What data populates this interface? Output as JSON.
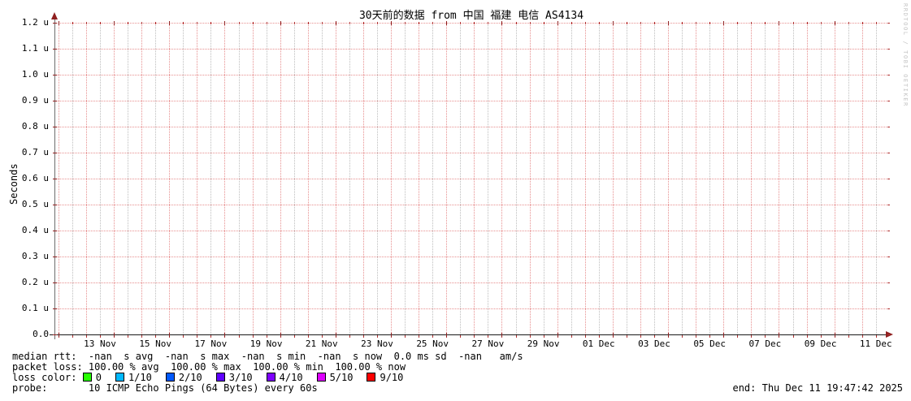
{
  "watermark": "RRDTOOL / TOBI OETIKER",
  "chart_data": {
    "type": "line",
    "title": "30天前的数据 from 中国 福建 电信 AS4134",
    "ylabel": "Seconds",
    "xlabel": "",
    "y_unit": "u",
    "ylim": [
      0,
      1.2e-06
    ],
    "grid": true,
    "legend_position": "bottom",
    "yticks": [
      "0.0",
      "0.1 u",
      "0.2 u",
      "0.3 u",
      "0.4 u",
      "0.5 u",
      "0.6 u",
      "0.7 u",
      "0.8 u",
      "0.9 u",
      "1.0 u",
      "1.1 u",
      "1.2 u"
    ],
    "xticks": [
      "13 Nov",
      "15 Nov",
      "17 Nov",
      "19 Nov",
      "21 Nov",
      "23 Nov",
      "25 Nov",
      "27 Nov",
      "29 Nov",
      "01 Dec",
      "03 Dec",
      "05 Dec",
      "07 Dec",
      "09 Dec",
      "11 Dec"
    ],
    "series": [
      {
        "name": "median rtt",
        "values": []
      }
    ],
    "stats": {
      "median_rtt": {
        "avg": "-nan s",
        "max": "-nan s",
        "min": "-nan s",
        "now": "-nan s",
        "sd": "0.0 ms",
        "am_per_s": "-nan"
      },
      "packet_loss": {
        "avg": "100.00 %",
        "max": "100.00 %",
        "min": "100.00 %",
        "now": "100.00 %"
      }
    }
  },
  "legend": {
    "median_rtt_line": "median rtt:  -nan  s avg  -nan  s max  -nan  s min  -nan  s now  0.0 ms sd  -nan   am/s",
    "packet_loss_line": "packet loss: 100.00 % avg  100.00 % max  100.00 % min  100.00 % now",
    "loss_color_label": "loss color: ",
    "loss_items": [
      {
        "label": "0",
        "color": "#26ff00"
      },
      {
        "label": "1/10",
        "color": "#00b8ff"
      },
      {
        "label": "2/10",
        "color": "#0059ff"
      },
      {
        "label": "3/10",
        "color": "#5e00ff"
      },
      {
        "label": "4/10",
        "color": "#7e00ff"
      },
      {
        "label": "5/10",
        "color": "#dd00ff"
      },
      {
        "label": "9/10",
        "color": "#ff0000"
      }
    ],
    "probe_line": "probe:       10 ICMP Echo Pings (64 Bytes) every 60s",
    "end_line": "end: Thu Dec 11 19:47:42 2025"
  },
  "colors": {
    "grid_major_pink": "#e78f8f",
    "grid_minor_gray": "#bdbdbd",
    "axis_dark": "#1a1a1a",
    "arrow_dark_red": "#8f1f1f",
    "tick_red": "#b03030",
    "watermark_gray": "#c4c4c4",
    "background": "#ffffff"
  }
}
